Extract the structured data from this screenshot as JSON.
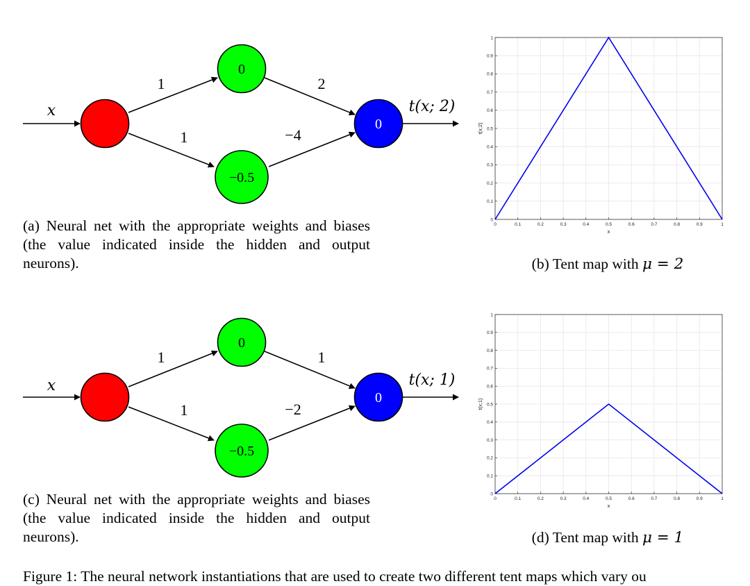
{
  "networks": [
    {
      "input_label": "x",
      "output_label": "t(x; 2)",
      "hidden_top_bias": "0",
      "hidden_bottom_bias": "−0.5",
      "output_bias": "0",
      "w_in_top": "1",
      "w_in_bottom": "1",
      "w_out_top": "2",
      "w_out_bottom": "−4",
      "caption": "(a) Neural net with the appropriate weights and biases (the value indicated inside the hidden and output neurons)."
    },
    {
      "input_label": "x",
      "output_label": "t(x; 1)",
      "hidden_top_bias": "0",
      "hidden_bottom_bias": "−0.5",
      "output_bias": "0",
      "w_in_top": "1",
      "w_in_bottom": "1",
      "w_out_top": "1",
      "w_out_bottom": "−2",
      "caption": "(c) Neural net with the appropriate weights and biases (the value indicated inside the hidden and output neurons)."
    }
  ],
  "plot_captions": [
    {
      "prefix": "(b) Tent map with ",
      "math": "μ = 2"
    },
    {
      "prefix": "(d) Tent map with ",
      "math": "μ = 1"
    }
  ],
  "figure_caption": "Figure 1: The neural network instantiations that are used to create two different tent maps which vary ou",
  "colors": {
    "input_neuron": "#ff0000",
    "hidden_neuron": "#00ff00",
    "output_neuron": "#0000ff",
    "line": "#0000ee",
    "grid": "#e6e6e6"
  },
  "chart_data": [
    {
      "type": "line",
      "title": "",
      "xlabel": "x",
      "ylabel": "t(x;2)",
      "xlim": [
        0,
        1
      ],
      "ylim": [
        0,
        1
      ],
      "xticks": [
        "0",
        "0.1",
        "0.2",
        "0.3",
        "0.4",
        "0.5",
        "0.6",
        "0.7",
        "0.8",
        "0.9",
        "1"
      ],
      "yticks": [
        "0",
        "0.1",
        "0.2",
        "0.3",
        "0.4",
        "0.5",
        "0.6",
        "0.7",
        "0.8",
        "0.9",
        "1"
      ],
      "grid": true,
      "series": [
        {
          "x": [
            0,
            0.5,
            1
          ],
          "y": [
            0,
            1,
            0
          ]
        }
      ]
    },
    {
      "type": "line",
      "title": "",
      "xlabel": "x",
      "ylabel": "t(x;1)",
      "xlim": [
        0,
        1
      ],
      "ylim": [
        0,
        1
      ],
      "xticks": [
        "0",
        "0.1",
        "0.2",
        "0.3",
        "0.4",
        "0.5",
        "0.6",
        "0.7",
        "0.8",
        "0.9",
        "1"
      ],
      "yticks": [
        "0",
        "0.1",
        "0.2",
        "0.3",
        "0.4",
        "0.5",
        "0.6",
        "0.7",
        "0.8",
        "0.9",
        "1"
      ],
      "grid": true,
      "series": [
        {
          "x": [
            0,
            0.5,
            1
          ],
          "y": [
            0,
            0.5,
            0
          ]
        }
      ]
    }
  ]
}
